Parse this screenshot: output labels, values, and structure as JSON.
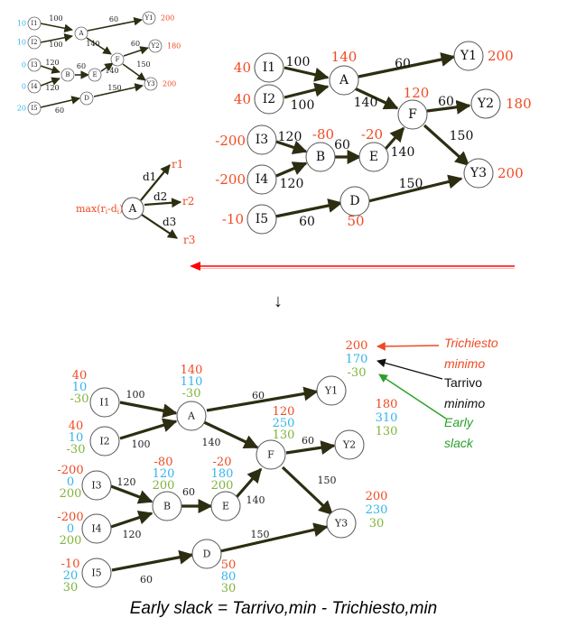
{
  "colors": {
    "required": "#f04a23",
    "arrival": "#33b5ea",
    "slack": "#7fb33a",
    "edge": "#2d2d12",
    "node_stroke": "#555555",
    "legend_black": "#111111",
    "highlight_line": "#ff0000"
  },
  "small_diagram": {
    "nodes": {
      "I1": "I1",
      "I2": "I2",
      "I3": "I3",
      "I4": "I4",
      "I5": "I5",
      "A": "A",
      "B": "B",
      "E": "E",
      "F": "F",
      "D": "D",
      "Y1": "Y1",
      "Y2": "Y2",
      "Y3": "Y3"
    },
    "inputs": {
      "I1": "10",
      "I2": "10",
      "I3": "0",
      "I4": "0",
      "I5": "20"
    },
    "outputs": {
      "Y1": "200",
      "Y2": "180",
      "Y3": "200"
    },
    "edges": {
      "I1A": "100",
      "I2A": "100",
      "I3B": "120",
      "I4B": "120",
      "I5D": "60",
      "BE": "60",
      "AY1": "60",
      "AF": "140",
      "EF": "140",
      "FY2": "60",
      "FY3": "150",
      "DY3": "150"
    }
  },
  "top_diagram": {
    "nodes": {
      "I1": "I1",
      "I2": "I2",
      "I3": "I3",
      "I4": "I4",
      "I5": "I5",
      "A": "A",
      "B": "B",
      "E": "E",
      "F": "F",
      "D": "D",
      "Y1": "Y1",
      "Y2": "Y2",
      "Y3": "Y3"
    },
    "required": {
      "I1": "40",
      "I2": "40",
      "I3": "-200",
      "I4": "-200",
      "I5": "-10",
      "A": "140",
      "B": "-80",
      "E": "-20",
      "F": "120",
      "D": "50",
      "Y1": "200",
      "Y2": "180",
      "Y3": "200"
    },
    "edges": {
      "I1A": "100",
      "I2A": "100",
      "I3B": "120",
      "I4B": "120",
      "I5D": "60",
      "BE": "60",
      "AY1": "60",
      "AF": "140",
      "EF": "140",
      "FY2": "60",
      "FY3": "150",
      "DY3": "150"
    }
  },
  "formula_diagram": {
    "node": "A",
    "expression": "max(r",
    "expression_sub1": "i",
    "expression_mid": "-d",
    "expression_sub2": "i",
    "expression_end": ")",
    "edges": {
      "d1": "d1",
      "d2": "d2",
      "d3": "d3"
    },
    "outputs": {
      "r1": "r1",
      "r2": "r2",
      "r3": "r3"
    }
  },
  "down_arrow": "↓",
  "bottom_diagram": {
    "nodes": {
      "I1": "I1",
      "I2": "I2",
      "I3": "I3",
      "I4": "I4",
      "I5": "I5",
      "A": "A",
      "B": "B",
      "E": "E",
      "F": "F",
      "D": "D",
      "Y1": "Y1",
      "Y2": "Y2",
      "Y3": "Y3"
    },
    "values": {
      "I1": {
        "r": "40",
        "a": "10",
        "s": "-30"
      },
      "I2": {
        "r": "40",
        "a": "10",
        "s": "-30"
      },
      "I3": {
        "r": "-200",
        "a": "0",
        "s": "200"
      },
      "I4": {
        "r": "-200",
        "a": "0",
        "s": "200"
      },
      "I5": {
        "r": "-10",
        "a": "20",
        "s": "30"
      },
      "A": {
        "r": "140",
        "a": "110",
        "s": "-30"
      },
      "B": {
        "r": "-80",
        "a": "120",
        "s": "200"
      },
      "E": {
        "r": "-20",
        "a": "180",
        "s": "200"
      },
      "F": {
        "r": "120",
        "a": "250",
        "s": "130"
      },
      "D": {
        "r": "50",
        "a": "80",
        "s": "30"
      },
      "Y1": {
        "r": "200",
        "a": "170",
        "s": "-30"
      },
      "Y2": {
        "r": "180",
        "a": "310",
        "s": "130"
      },
      "Y3": {
        "r": "200",
        "a": "230",
        "s": "30"
      }
    },
    "edges": {
      "I1A": "100",
      "I2A": "100",
      "I3B": "120",
      "I4B": "120",
      "I5D": "60",
      "BE": "60",
      "AY1": "60",
      "AF": "140",
      "EF": "140",
      "FY2": "60",
      "FY3": "150",
      "DY3": "150"
    }
  },
  "legend": {
    "required_1": "Trichiesto",
    "required_2": "minimo",
    "arrival_1": "Tarrivo",
    "arrival_2": "minimo",
    "slack_1": "Early",
    "slack_2": "slack"
  },
  "formula": "Early slack = Tarrivo,min - Trichiesto,min"
}
